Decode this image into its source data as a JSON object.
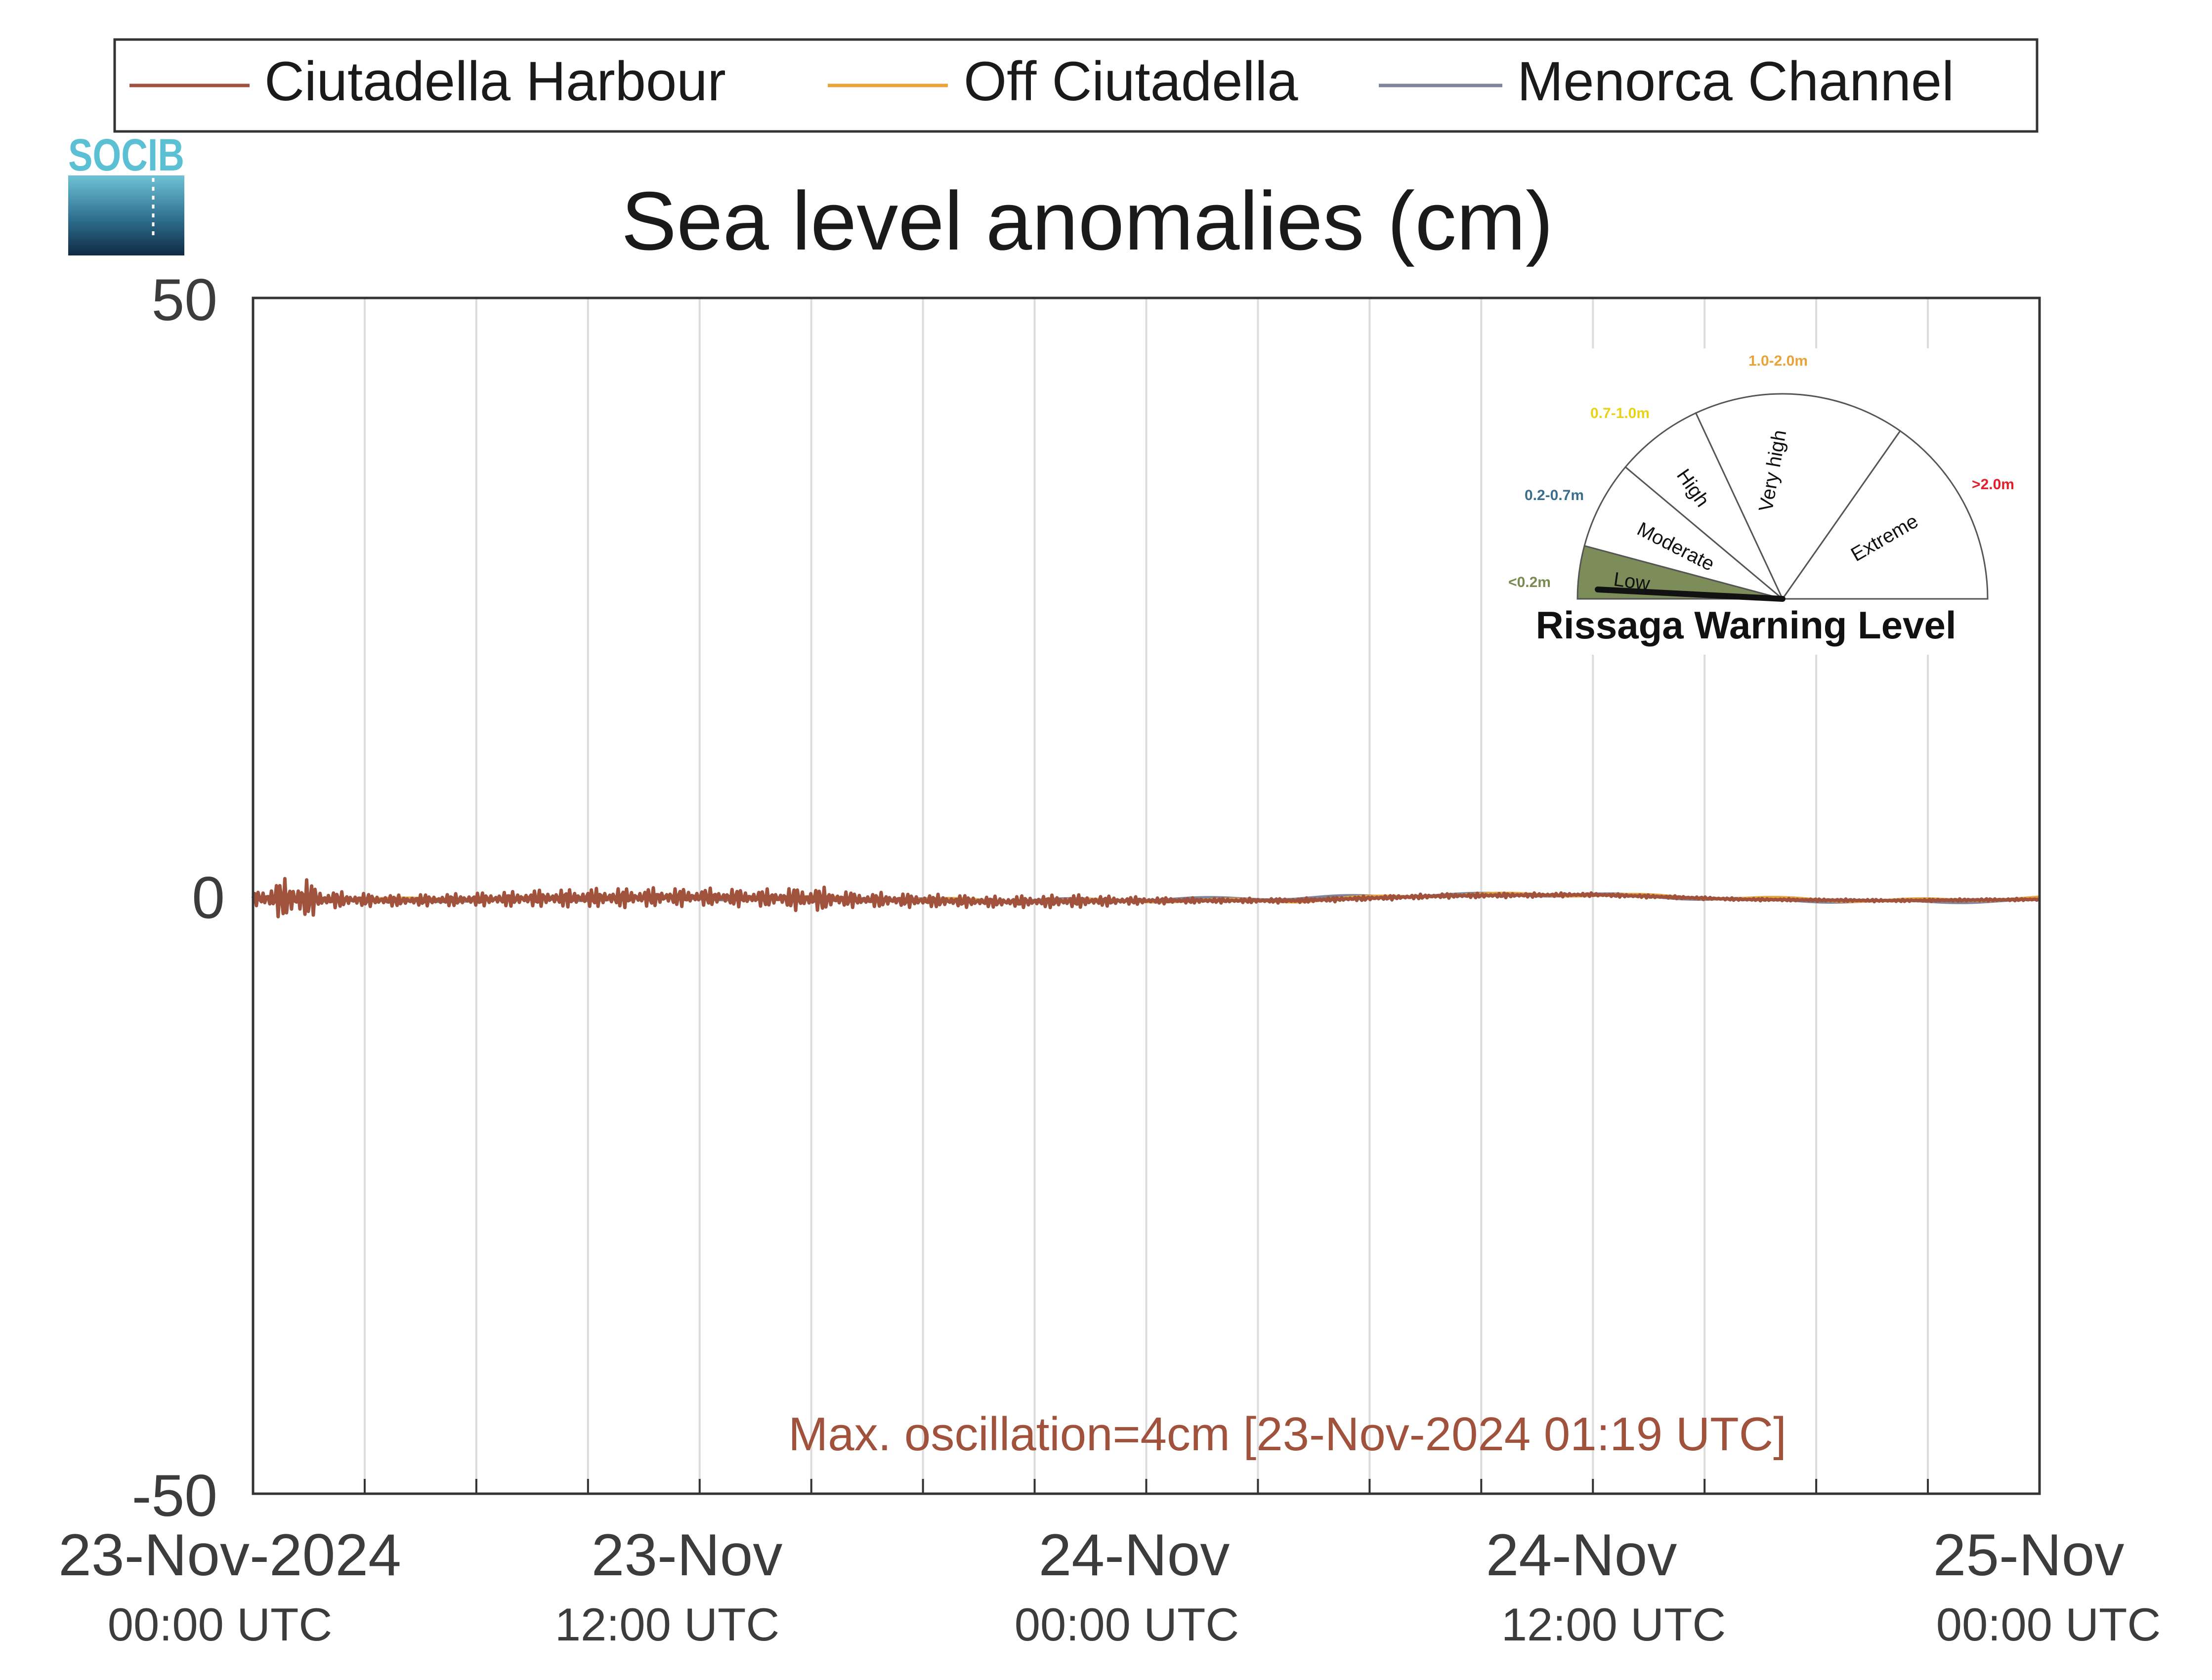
{
  "title": "Sea level anomalies (cm)",
  "logo_text": "SOCIB",
  "legend": [
    {
      "label": "Ciutadella Harbour",
      "color": "#A0523D"
    },
    {
      "label": "Off Ciutadella",
      "color": "#E8A33A"
    },
    {
      "label": "Menorca Channel",
      "color": "#7F8599"
    }
  ],
  "annotation": "Max. oscillation=4cm [23-Nov-2024 01:19 UTC]",
  "annotation_color": "#A0523D",
  "gauge": {
    "title": "Rissaga Warning Level",
    "sectors": [
      {
        "name": "Low",
        "range": "<0.2m",
        "range_color": "#7A8A50",
        "fill": "#7C8D5A"
      },
      {
        "name": "Moderate",
        "range": "0.2-0.7m",
        "range_color": "#3A6E8A",
        "fill": "#ffffff"
      },
      {
        "name": "High",
        "range": "0.7-1.0m",
        "range_color": "#E9D21A",
        "fill": "#ffffff"
      },
      {
        "name": "Very high",
        "range": "1.0-2.0m",
        "range_color": "#E8A33A",
        "fill": "#ffffff"
      },
      {
        "name": "Extreme",
        "range": ">2.0m",
        "range_color": "#E0202A",
        "fill": "#ffffff"
      }
    ],
    "current_level": "Low"
  },
  "chart_data": {
    "type": "line",
    "title": "Sea level anomalies (cm)",
    "ylim": [
      -50,
      50
    ],
    "yticks": [
      -50,
      0,
      50
    ],
    "xlim_hours": [
      0,
      48
    ],
    "grid": "vertical",
    "legend_position": "top",
    "xticks": [
      {
        "hours": 0,
        "date": "23-Nov-2024",
        "time": "00:00 UTC"
      },
      {
        "hours": 12,
        "date": "23-Nov",
        "time": "12:00 UTC"
      },
      {
        "hours": 24,
        "date": "24-Nov",
        "time": "00:00 UTC"
      },
      {
        "hours": 36,
        "date": "24-Nov",
        "time": "12:00 UTC"
      },
      {
        "hours": 48,
        "date": "25-Nov",
        "time": "00:00 UTC"
      }
    ],
    "series": [
      {
        "name": "Ciutadella Harbour",
        "color": "#A0523D",
        "envelope": [
          [
            0,
            0.5
          ],
          [
            0.5,
            1.5
          ],
          [
            1.0,
            2.0
          ],
          [
            1.32,
            2.0
          ],
          [
            1.6,
            1.5
          ],
          [
            2.0,
            0.8
          ],
          [
            3.0,
            0.6
          ],
          [
            4.0,
            0.5
          ],
          [
            6.0,
            0.6
          ],
          [
            8.0,
            0.8
          ],
          [
            10.0,
            0.9
          ],
          [
            12.0,
            0.8
          ],
          [
            14.0,
            0.8
          ],
          [
            15.0,
            1.2
          ],
          [
            16.0,
            0.7
          ],
          [
            18.0,
            0.6
          ],
          [
            20.0,
            0.5
          ],
          [
            22.0,
            0.6
          ],
          [
            24.0,
            0.3
          ],
          [
            26.0,
            0.2
          ],
          [
            30.0,
            0.2
          ],
          [
            34.0,
            0.2
          ],
          [
            36.0,
            0.15
          ],
          [
            40.0,
            0.1
          ],
          [
            48.0,
            0.1
          ]
        ],
        "baseline": [
          [
            0,
            -0.2
          ],
          [
            4,
            -0.4
          ],
          [
            8,
            -0.2
          ],
          [
            12,
            -0.1
          ],
          [
            16,
            -0.3
          ],
          [
            20,
            -0.5
          ],
          [
            24,
            -0.4
          ],
          [
            28,
            -0.4
          ],
          [
            32,
            0.0
          ],
          [
            36,
            0.1
          ],
          [
            40,
            -0.3
          ],
          [
            44,
            -0.4
          ],
          [
            48,
            -0.3
          ]
        ]
      },
      {
        "name": "Off Ciutadella",
        "color": "#E8A33A",
        "baseline": [
          [
            0,
            -0.2
          ],
          [
            4,
            -0.3
          ],
          [
            8,
            -0.2
          ],
          [
            12,
            -0.1
          ],
          [
            16,
            -0.2
          ],
          [
            20,
            -0.4
          ],
          [
            24,
            -0.4
          ],
          [
            28,
            -0.4
          ],
          [
            32,
            0.1
          ],
          [
            36,
            0.1
          ],
          [
            40,
            -0.2
          ],
          [
            44,
            -0.4
          ],
          [
            48,
            -0.2
          ]
        ]
      },
      {
        "name": "Menorca Channel",
        "color": "#7F8599",
        "baseline": [
          [
            0,
            -0.3
          ],
          [
            4,
            -0.4
          ],
          [
            8,
            -0.3
          ],
          [
            12,
            -0.2
          ],
          [
            16,
            -0.3
          ],
          [
            20,
            -0.4
          ],
          [
            24,
            -0.3
          ],
          [
            28,
            -0.2
          ],
          [
            32,
            0.1
          ],
          [
            36,
            0.1
          ],
          [
            40,
            -0.3
          ],
          [
            44,
            -0.5
          ],
          [
            48,
            -0.4
          ]
        ]
      }
    ]
  }
}
